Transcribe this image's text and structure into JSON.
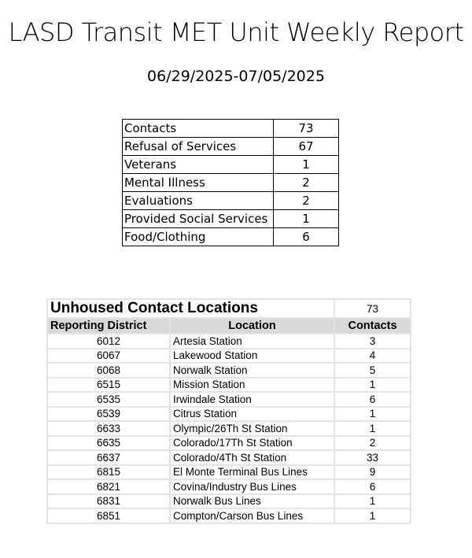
{
  "title": "LASD Transit MET Unit Weekly Report",
  "date_range": "06/29/2025-07/05/2025",
  "summary": [
    {
      "label": "Contacts",
      "value": "73"
    },
    {
      "label": "Refusal of Services",
      "value": "67"
    },
    {
      "label": "Veterans",
      "value": "1"
    },
    {
      "label": "Mental Illness",
      "value": "2"
    },
    {
      "label": "Evaluations",
      "value": "2"
    },
    {
      "label": "Provided Social Services",
      "value": "1"
    },
    {
      "label": "Food/Clothing",
      "value": "6"
    }
  ],
  "locations": {
    "title": "Unhoused Contact Locations",
    "total": "73",
    "headers": [
      "Reporting District",
      "Location",
      "Contacts"
    ],
    "rows": [
      [
        "6012",
        "Artesia Station",
        "3"
      ],
      [
        "6067",
        "Lakewood Station",
        "4"
      ],
      [
        "6068",
        "Norwalk Station",
        "5"
      ],
      [
        "6515",
        "Mission Station",
        "1"
      ],
      [
        "6535",
        "Irwindale Station",
        "6"
      ],
      [
        "6539",
        "Citrus Station",
        "1"
      ],
      [
        "6633",
        "Olympic/26Th St Station",
        "1"
      ],
      [
        "6635",
        "Colorado/17Th St Station",
        "2"
      ],
      [
        "6637",
        "Colorado/4Th St Station",
        "33"
      ],
      [
        "6815",
        "El Monte Terminal Bus Lines",
        "9"
      ],
      [
        "6821",
        "Covina/Industry Bus Lines",
        "6"
      ],
      [
        "6831",
        "Norwalk Bus Lines",
        "1"
      ],
      [
        "6851",
        "Compton/Carson Bus Lines",
        "1"
      ]
    ]
  }
}
